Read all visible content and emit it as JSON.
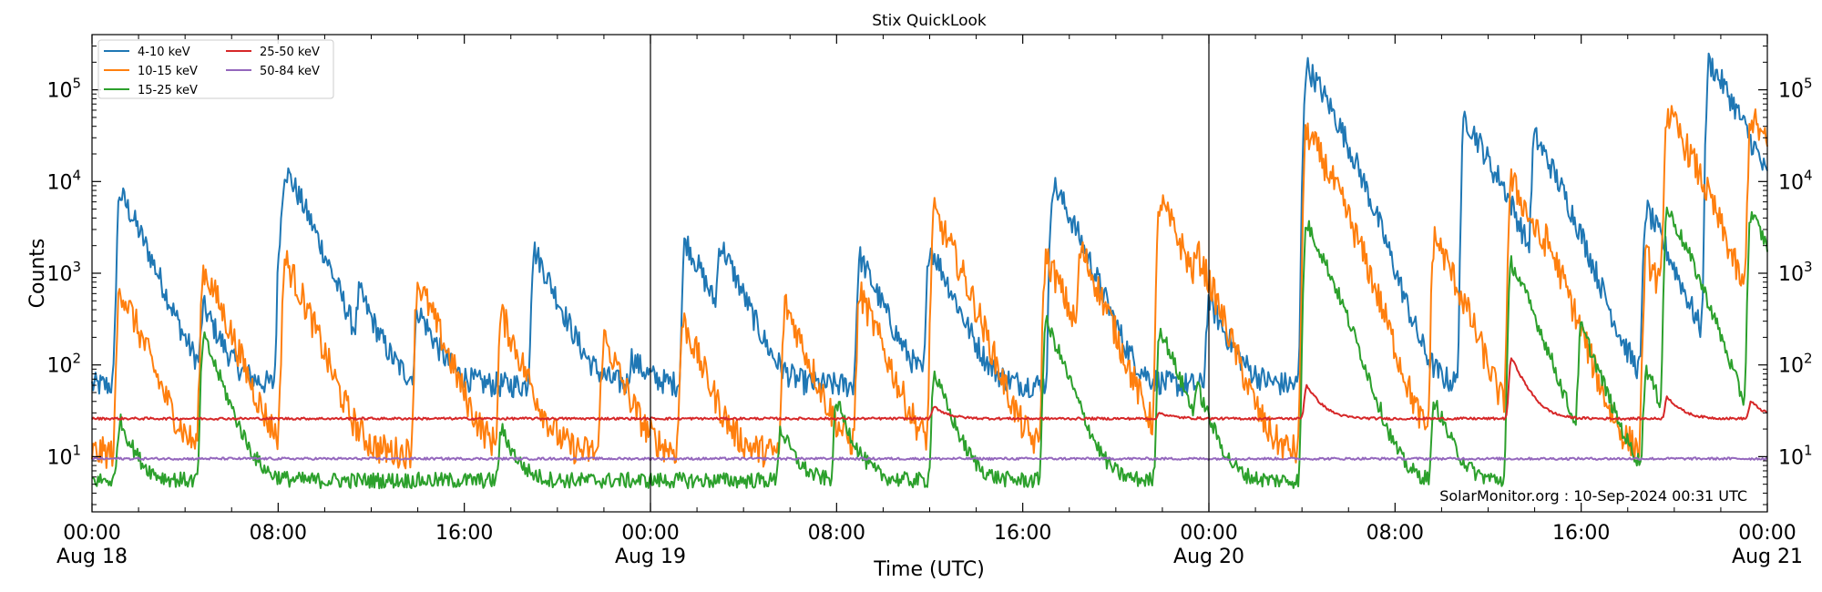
{
  "chart_data": {
    "type": "line",
    "title": "Stix QuickLook",
    "xlabel": "Time (UTC)",
    "ylabel": "Counts",
    "yscale": "log",
    "ylim": [
      2.5,
      400000
    ],
    "xlim_hours": [
      0,
      72
    ],
    "x_ticks": [
      {
        "hour": 0,
        "time": "00:00",
        "date": "Aug 18"
      },
      {
        "hour": 8,
        "time": "08:00",
        "date": ""
      },
      {
        "hour": 16,
        "time": "16:00",
        "date": ""
      },
      {
        "hour": 24,
        "time": "00:00",
        "date": "Aug 19"
      },
      {
        "hour": 32,
        "time": "08:00",
        "date": ""
      },
      {
        "hour": 40,
        "time": "16:00",
        "date": ""
      },
      {
        "hour": 48,
        "time": "00:00",
        "date": "Aug 20"
      },
      {
        "hour": 56,
        "time": "08:00",
        "date": ""
      },
      {
        "hour": 64,
        "time": "16:00",
        "date": ""
      },
      {
        "hour": 72,
        "time": "00:00",
        "date": "Aug 21"
      }
    ],
    "y_ticks": [
      {
        "value": 10,
        "label": "10",
        "exp": "1"
      },
      {
        "value": 100,
        "label": "10",
        "exp": "2"
      },
      {
        "value": 1000,
        "label": "10",
        "exp": "3"
      },
      {
        "value": 10000,
        "label": "10",
        "exp": "4"
      },
      {
        "value": 100000,
        "label": "10",
        "exp": "5"
      }
    ],
    "day_boundaries_hours": [
      24,
      48
    ],
    "legend": {
      "placement": "top-left",
      "columns": 2
    },
    "series": [
      {
        "name": "4-10 keV",
        "color": "#1f77b4",
        "baseline": 60,
        "noise": 0.32,
        "flares": [
          [
            1.2,
            7500
          ],
          [
            4.8,
            400
          ],
          [
            8.1,
            2700
          ],
          [
            8.3,
            11500
          ],
          [
            11.5,
            500
          ],
          [
            14.0,
            400
          ],
          [
            19.0,
            1800
          ],
          [
            23.2,
            120
          ],
          [
            25.5,
            2300
          ],
          [
            27.0,
            1800
          ],
          [
            33.0,
            1500
          ],
          [
            36.0,
            2000
          ],
          [
            41.3,
            9500
          ],
          [
            48.0,
            500
          ],
          [
            52.2,
            180000
          ],
          [
            59.0,
            50000
          ],
          [
            60.5,
            2000
          ],
          [
            62.0,
            30000
          ],
          [
            66.8,
            5000
          ],
          [
            69.5,
            200000
          ],
          [
            71.5,
            1200
          ]
        ]
      },
      {
        "name": "10-15 keV",
        "color": "#ff7f0e",
        "baseline": 11,
        "noise": 0.4,
        "flares": [
          [
            1.2,
            700
          ],
          [
            4.8,
            1100
          ],
          [
            8.3,
            1400
          ],
          [
            14.0,
            800
          ],
          [
            17.6,
            350
          ],
          [
            22.0,
            200
          ],
          [
            25.4,
            300
          ],
          [
            29.8,
            450
          ],
          [
            33.0,
            600
          ],
          [
            36.2,
            4500
          ],
          [
            41.0,
            1500
          ],
          [
            42.5,
            1600
          ],
          [
            45.9,
            6000
          ],
          [
            47.5,
            900
          ],
          [
            52.2,
            35000
          ],
          [
            57.7,
            2500
          ],
          [
            61.0,
            10000
          ],
          [
            62.5,
            800
          ],
          [
            66.8,
            1500
          ],
          [
            67.7,
            55000
          ],
          [
            71.3,
            50000
          ]
        ]
      },
      {
        "name": "15-25 keV",
        "color": "#2ca02c",
        "baseline": 5.5,
        "noise": 0.2,
        "flares": [
          [
            1.2,
            25
          ],
          [
            4.8,
            200
          ],
          [
            17.6,
            20
          ],
          [
            29.6,
            20
          ],
          [
            32.0,
            40
          ],
          [
            36.2,
            80
          ],
          [
            41.0,
            300
          ],
          [
            45.9,
            250
          ],
          [
            47.5,
            40
          ],
          [
            52.2,
            3500
          ],
          [
            57.7,
            40
          ],
          [
            61.0,
            1300
          ],
          [
            64.0,
            250
          ],
          [
            66.8,
            90
          ],
          [
            67.7,
            5000
          ],
          [
            71.3,
            4500
          ]
        ]
      },
      {
        "name": "25-50 keV",
        "color": "#d62728",
        "baseline": 26,
        "noise": 0.03,
        "flares": [
          [
            36.2,
            35
          ],
          [
            45.9,
            30
          ],
          [
            52.2,
            60
          ],
          [
            61.0,
            120
          ],
          [
            67.7,
            45
          ],
          [
            71.3,
            40
          ]
        ]
      },
      {
        "name": "50-84 keV",
        "color": "#9467bd",
        "baseline": 9.5,
        "noise": 0.03,
        "flares": []
      }
    ],
    "annotation": "SolarMonitor.org : 10-Sep-2024 00:31 UTC"
  }
}
